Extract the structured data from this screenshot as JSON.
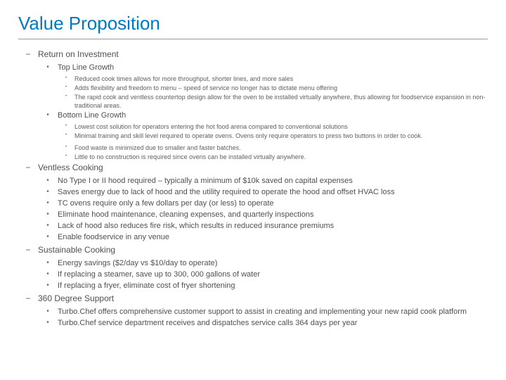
{
  "title": "Value Proposition",
  "colors": {
    "accent": "#0079c1",
    "text": "#505050",
    "text_light": "#606060",
    "rule": "#9a9a9a"
  },
  "sections": [
    {
      "heading": "Return on Investment",
      "subsections": [
        {
          "heading": "Top Line Growth",
          "bullets": [
            "Reduced cook times allows for more throughput, shorter lines, and more sales",
            "Adds flexibility and freedom to menu – speed of service no longer has to dictate menu offering",
            "The rapid cook and ventless countertop design allow for the oven to be installed virtually anywhere, thus allowing for foodservice expansion in non-traditional areas."
          ]
        },
        {
          "heading": "Bottom Line Growth",
          "bullets": [
            "Lowest cost solution for operators entering the hot food arena compared to conventional solutions",
            "Minimal training and skill level required to operate ovens. Ovens only require operators to press two buttons in order to cook.",
            "Food waste is minimized due to smaller and faster batches.",
            "Little to no construction is required since ovens can be installed virtually anywhere."
          ],
          "gap_after": 2
        }
      ]
    },
    {
      "heading": "Ventless Cooking",
      "bullets": [
        "No Type I or II hood required – typically a minimum of $10k saved on capital expenses",
        "Saves energy due to lack of hood and the utility required to operate the hood and offset HVAC loss",
        "TC ovens require only a few dollars per day (or less) to operate",
        "Eliminate hood maintenance, cleaning expenses, and quarterly inspections",
        "Lack of hood also reduces fire risk, which results in reduced insurance premiums",
        "Enable foodservice in any venue"
      ]
    },
    {
      "heading": "Sustainable Cooking",
      "bullets": [
        "Energy savings ($2/day vs $10/day to operate)",
        "If replacing a steamer, save up to 300, 000 gallons of water",
        "If replacing a fryer, eliminate cost of fryer shortening"
      ]
    },
    {
      "heading": "360 Degree Support",
      "bullets": [
        "Turbo.Chef offers comprehensive customer support to assist in creating and implementing your new rapid cook platform",
        "Turbo.Chef service department receives and dispatches service calls 364 days per year"
      ]
    }
  ]
}
